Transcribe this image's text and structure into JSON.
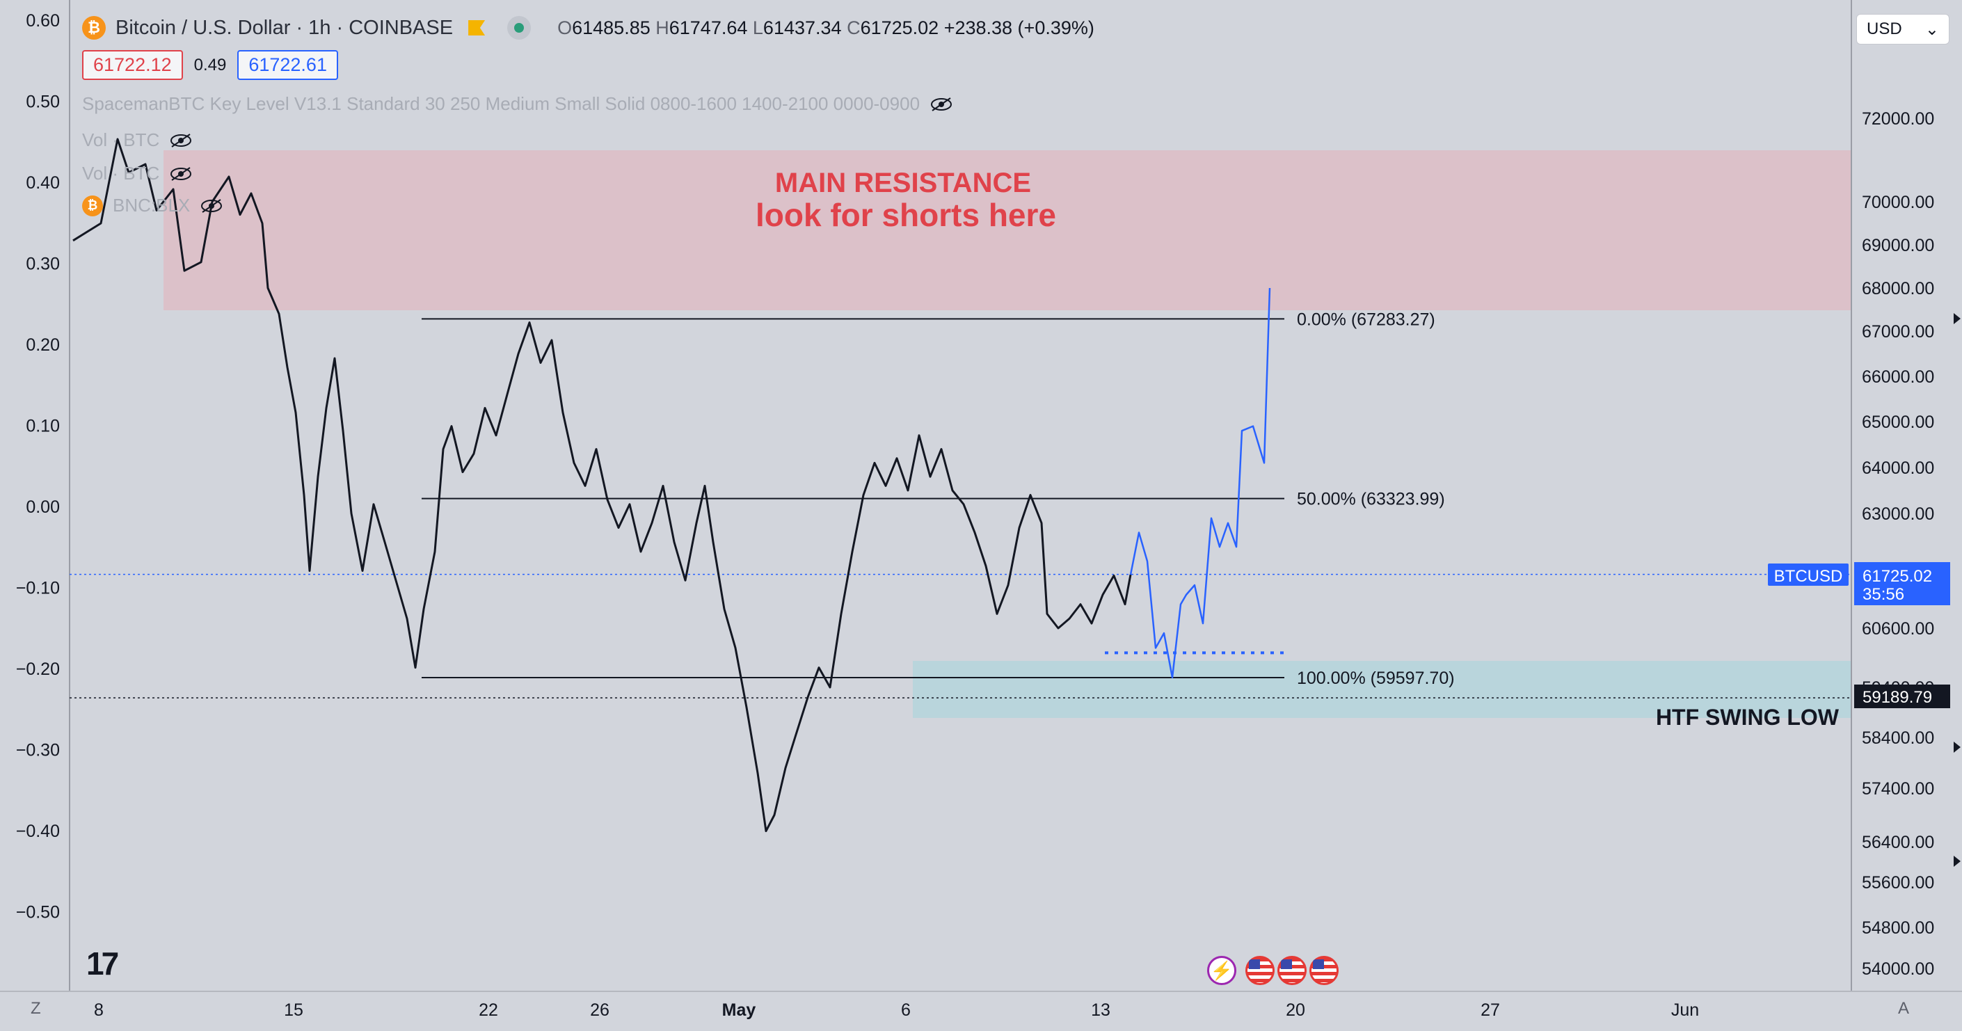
{
  "header": {
    "coin_icon": "bitcoin-icon",
    "title": "Bitcoin / U.S. Dollar · 1h · COINBASE",
    "ohlc": {
      "o_key": "O",
      "o": "61485.85",
      "h_key": "H",
      "h": "61747.64",
      "l_key": "L",
      "l": "61437.34",
      "c_key": "C",
      "c": "61725.02",
      "change": "+238.38 (+0.39%)"
    },
    "bid": "61722.12",
    "spread": "0.49",
    "ask": "61722.61"
  },
  "indicators": [
    {
      "label": "SpacemanBTC Key Level V13.1 Standard 30 250 Medium Small Solid 0800-1600 1400-2100 0000-0900",
      "icon": "eye-hidden-icon"
    },
    {
      "label": "Vol · BTC",
      "icon": "eye-hidden-icon"
    },
    {
      "label": "Vol · BTC",
      "icon": "eye-hidden-icon"
    },
    {
      "label": "BNC:BLX",
      "icon": "eye-hidden-icon"
    }
  ],
  "currency_select": "USD",
  "annotations": {
    "resistance_line1": "MAIN RESISTANCE",
    "resistance_line2": "look for shorts here",
    "swing_low": "HTF SWING LOW"
  },
  "badges": {
    "symbol": "BTCUSD",
    "last_price": "61725.02",
    "countdown": "35:56",
    "dotted_price": "59189.79"
  },
  "bottom_bar": {
    "left_button": "Z",
    "right_button": "A"
  },
  "chart_data": {
    "type": "line",
    "title": "Bitcoin / U.S. Dollar · 1h · COINBASE",
    "right_axis": {
      "ticks": [
        72000,
        70000,
        69000,
        68000,
        67000,
        66000,
        65000,
        64000,
        63000,
        60600,
        59400,
        58400,
        57400,
        56400,
        55600,
        54800,
        54000
      ],
      "tick_labels": [
        "72000.00",
        "70000.00",
        "69000.00",
        "68000.00",
        "67000.00",
        "66000.00",
        "65000.00",
        "64000.00",
        "63000.00",
        "60600.00",
        "59400.00",
        "58400.00",
        "57400.00",
        "56400.00",
        "55600.00",
        "54800.00",
        "54000.00"
      ]
    },
    "left_axis": {
      "ticks": [
        0.6,
        0.5,
        0.4,
        0.3,
        0.2,
        0.1,
        0.0,
        -0.1,
        -0.2,
        -0.3,
        -0.4,
        -0.5
      ],
      "tick_labels": [
        "0.60",
        "0.50",
        "0.40",
        "0.30",
        "0.20",
        "0.10",
        "0.00",
        "−0.10",
        "−0.20",
        "−0.30",
        "−0.40",
        "−0.50"
      ]
    },
    "x_ticks": [
      "8",
      "15",
      "22",
      "26",
      "May",
      "6",
      "13",
      "20",
      "27",
      "Jun"
    ],
    "price_series": [
      [
        0,
        69100
      ],
      [
        1,
        69500
      ],
      [
        1.6,
        71500
      ],
      [
        2,
        70700
      ],
      [
        2.6,
        70900
      ],
      [
        3,
        69800
      ],
      [
        3.6,
        70300
      ],
      [
        4,
        68400
      ],
      [
        4.6,
        68600
      ],
      [
        5,
        70000
      ],
      [
        5.6,
        70600
      ],
      [
        6,
        69700
      ],
      [
        6.4,
        70200
      ],
      [
        6.8,
        69500
      ],
      [
        7,
        68000
      ],
      [
        7.4,
        67400
      ],
      [
        7.7,
        66200
      ],
      [
        8,
        65200
      ],
      [
        8.3,
        63400
      ],
      [
        8.5,
        61800
      ],
      [
        8.8,
        63800
      ],
      [
        9.1,
        65300
      ],
      [
        9.4,
        66400
      ],
      [
        9.7,
        64800
      ],
      [
        10,
        63000
      ],
      [
        10.4,
        61800
      ],
      [
        10.8,
        63200
      ],
      [
        11.2,
        62400
      ],
      [
        11.6,
        61600
      ],
      [
        12,
        60800
      ],
      [
        12.3,
        59800
      ],
      [
        12.6,
        61000
      ],
      [
        13,
        62200
      ],
      [
        13.3,
        64400
      ],
      [
        13.6,
        64900
      ],
      [
        14,
        63900
      ],
      [
        14.4,
        64300
      ],
      [
        14.8,
        65300
      ],
      [
        15.2,
        64700
      ],
      [
        15.6,
        65600
      ],
      [
        16,
        66500
      ],
      [
        16.4,
        67200
      ],
      [
        16.8,
        66300
      ],
      [
        17.2,
        66800
      ],
      [
        17.6,
        65200
      ],
      [
        18,
        64100
      ],
      [
        18.4,
        63600
      ],
      [
        18.8,
        64400
      ],
      [
        19.2,
        63300
      ],
      [
        19.6,
        62700
      ],
      [
        20,
        63200
      ],
      [
        20.4,
        62200
      ],
      [
        20.8,
        62800
      ],
      [
        21.2,
        63600
      ],
      [
        21.6,
        62400
      ],
      [
        22,
        61600
      ],
      [
        22.4,
        62800
      ],
      [
        22.7,
        63600
      ],
      [
        23,
        62400
      ],
      [
        23.4,
        61000
      ],
      [
        23.8,
        60200
      ],
      [
        24.2,
        59000
      ],
      [
        24.6,
        57700
      ],
      [
        24.9,
        56600
      ],
      [
        25.2,
        56900
      ],
      [
        25.6,
        57800
      ],
      [
        26,
        58500
      ],
      [
        26.4,
        59200
      ],
      [
        26.8,
        59800
      ],
      [
        27.2,
        59400
      ],
      [
        27.6,
        60900
      ],
      [
        28,
        62200
      ],
      [
        28.4,
        63400
      ],
      [
        28.8,
        64100
      ],
      [
        29.2,
        63600
      ],
      [
        29.6,
        64200
      ],
      [
        30,
        63500
      ],
      [
        30.4,
        64700
      ],
      [
        30.8,
        63800
      ],
      [
        31.2,
        64400
      ],
      [
        31.6,
        63500
      ],
      [
        32,
        63200
      ],
      [
        32.4,
        62600
      ],
      [
        32.8,
        61900
      ],
      [
        33.2,
        60900
      ],
      [
        33.6,
        61500
      ],
      [
        34,
        62700
      ],
      [
        34.4,
        63400
      ],
      [
        34.8,
        62800
      ],
      [
        35,
        60900
      ],
      [
        35.4,
        60600
      ],
      [
        35.8,
        60800
      ],
      [
        36.2,
        61100
      ],
      [
        36.6,
        60700
      ],
      [
        37,
        61300
      ],
      [
        37.4,
        61700
      ],
      [
        37.8,
        61100
      ],
      [
        38,
        61720
      ]
    ],
    "projection_series": [
      [
        38,
        61720
      ],
      [
        38.3,
        62600
      ],
      [
        38.6,
        62000
      ],
      [
        38.9,
        60200
      ],
      [
        39.2,
        60500
      ],
      [
        39.5,
        59600
      ],
      [
        39.8,
        61100
      ],
      [
        40,
        61300
      ],
      [
        40.3,
        61500
      ],
      [
        40.6,
        60700
      ],
      [
        40.9,
        62900
      ],
      [
        41.2,
        62300
      ],
      [
        41.5,
        62800
      ],
      [
        41.8,
        62300
      ],
      [
        42,
        64800
      ],
      [
        42.4,
        64900
      ],
      [
        42.8,
        64100
      ],
      [
        43,
        68000
      ]
    ],
    "fib_levels": [
      {
        "pct": "0.00%",
        "value": 67283.27,
        "label": "0.00% (67283.27)"
      },
      {
        "pct": "50.00%",
        "value": 63323.99,
        "label": "50.00% (63323.99)"
      },
      {
        "pct": "100.00%",
        "value": 59597.7,
        "label": "100.00% (59597.70)"
      }
    ],
    "zones": [
      {
        "name": "MAIN RESISTANCE",
        "from": 67800,
        "to": 71300
      },
      {
        "name": "HTF SWING LOW",
        "from": 58900,
        "to": 59800
      }
    ],
    "last_price": 61725.02,
    "dotted_level": 59189.79,
    "dotted_support_level": 60100
  }
}
